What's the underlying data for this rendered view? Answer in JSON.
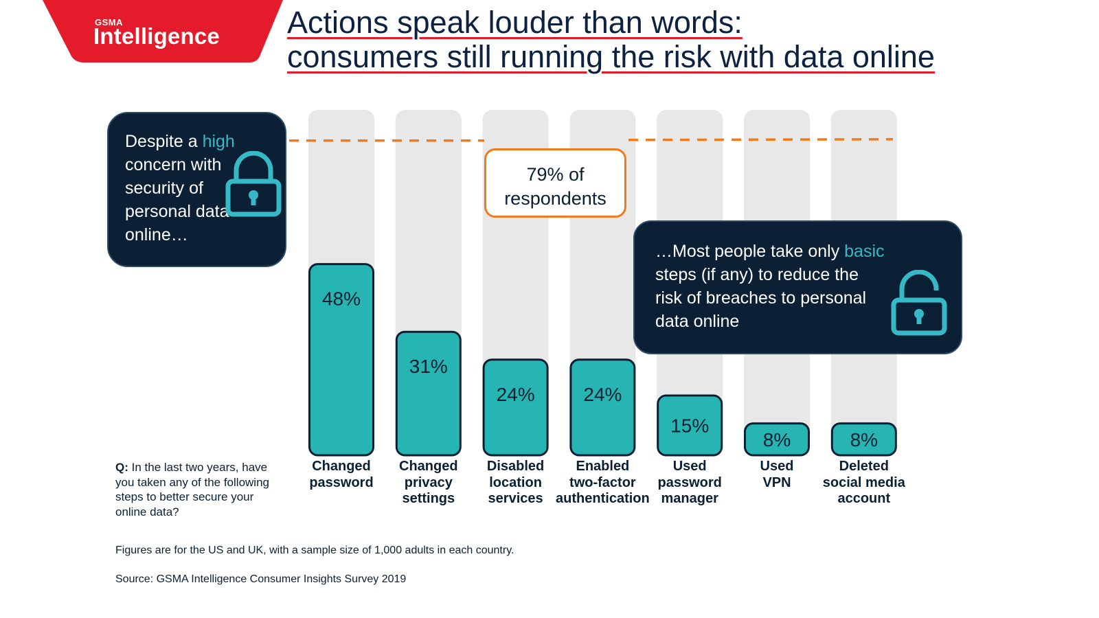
{
  "logo": {
    "small": "GSMA",
    "big": "Intelligence"
  },
  "title": {
    "line1": "Actions speak louder than words:",
    "line2": "consumers still running the risk with data online"
  },
  "callout_left": {
    "pre": "Despite a ",
    "accent": "high",
    "post": " concern with security of personal data online…"
  },
  "respondents": {
    "line1": "79% of",
    "line2": "respondents"
  },
  "callout_right": {
    "pre": "…Most people take only ",
    "accent": "basic",
    "post": " steps (if any) to reduce the risk of breaches to personal data online"
  },
  "question": {
    "prefix": "Q:",
    "text": " In the last two years, have you taken any of the following steps to better secure your online data?"
  },
  "footnote": "Figures are for the US and UK, with a sample size of 1,000 adults in each country.",
  "source": "Source: GSMA Intelligence Consumer Insights Survey 2019",
  "colors": {
    "bar": "#26b5b3",
    "track": "#e8e8e8",
    "panel": "#0c2035",
    "accent": "#36b8c6",
    "reference": "#f07a1e",
    "brand_red": "#e41b2b"
  },
  "chart_data": {
    "type": "bar",
    "categories": [
      [
        "Changed",
        "password"
      ],
      [
        "Changed",
        "privacy",
        "settings"
      ],
      [
        "Disabled",
        "location",
        "services"
      ],
      [
        "Enabled",
        "two-factor",
        "authentication"
      ],
      [
        "Used",
        "password",
        "manager"
      ],
      [
        "Used",
        "VPN"
      ],
      [
        "Deleted",
        "social media",
        "account"
      ]
    ],
    "values": [
      48,
      31,
      24,
      24,
      15,
      8,
      8
    ],
    "value_labels": [
      "48%",
      "31%",
      "24%",
      "24%",
      "15%",
      "8%",
      "8%"
    ],
    "reference_line": {
      "value": 79,
      "label": "79% of respondents"
    },
    "ylim": [
      0,
      100
    ],
    "grid": false
  }
}
